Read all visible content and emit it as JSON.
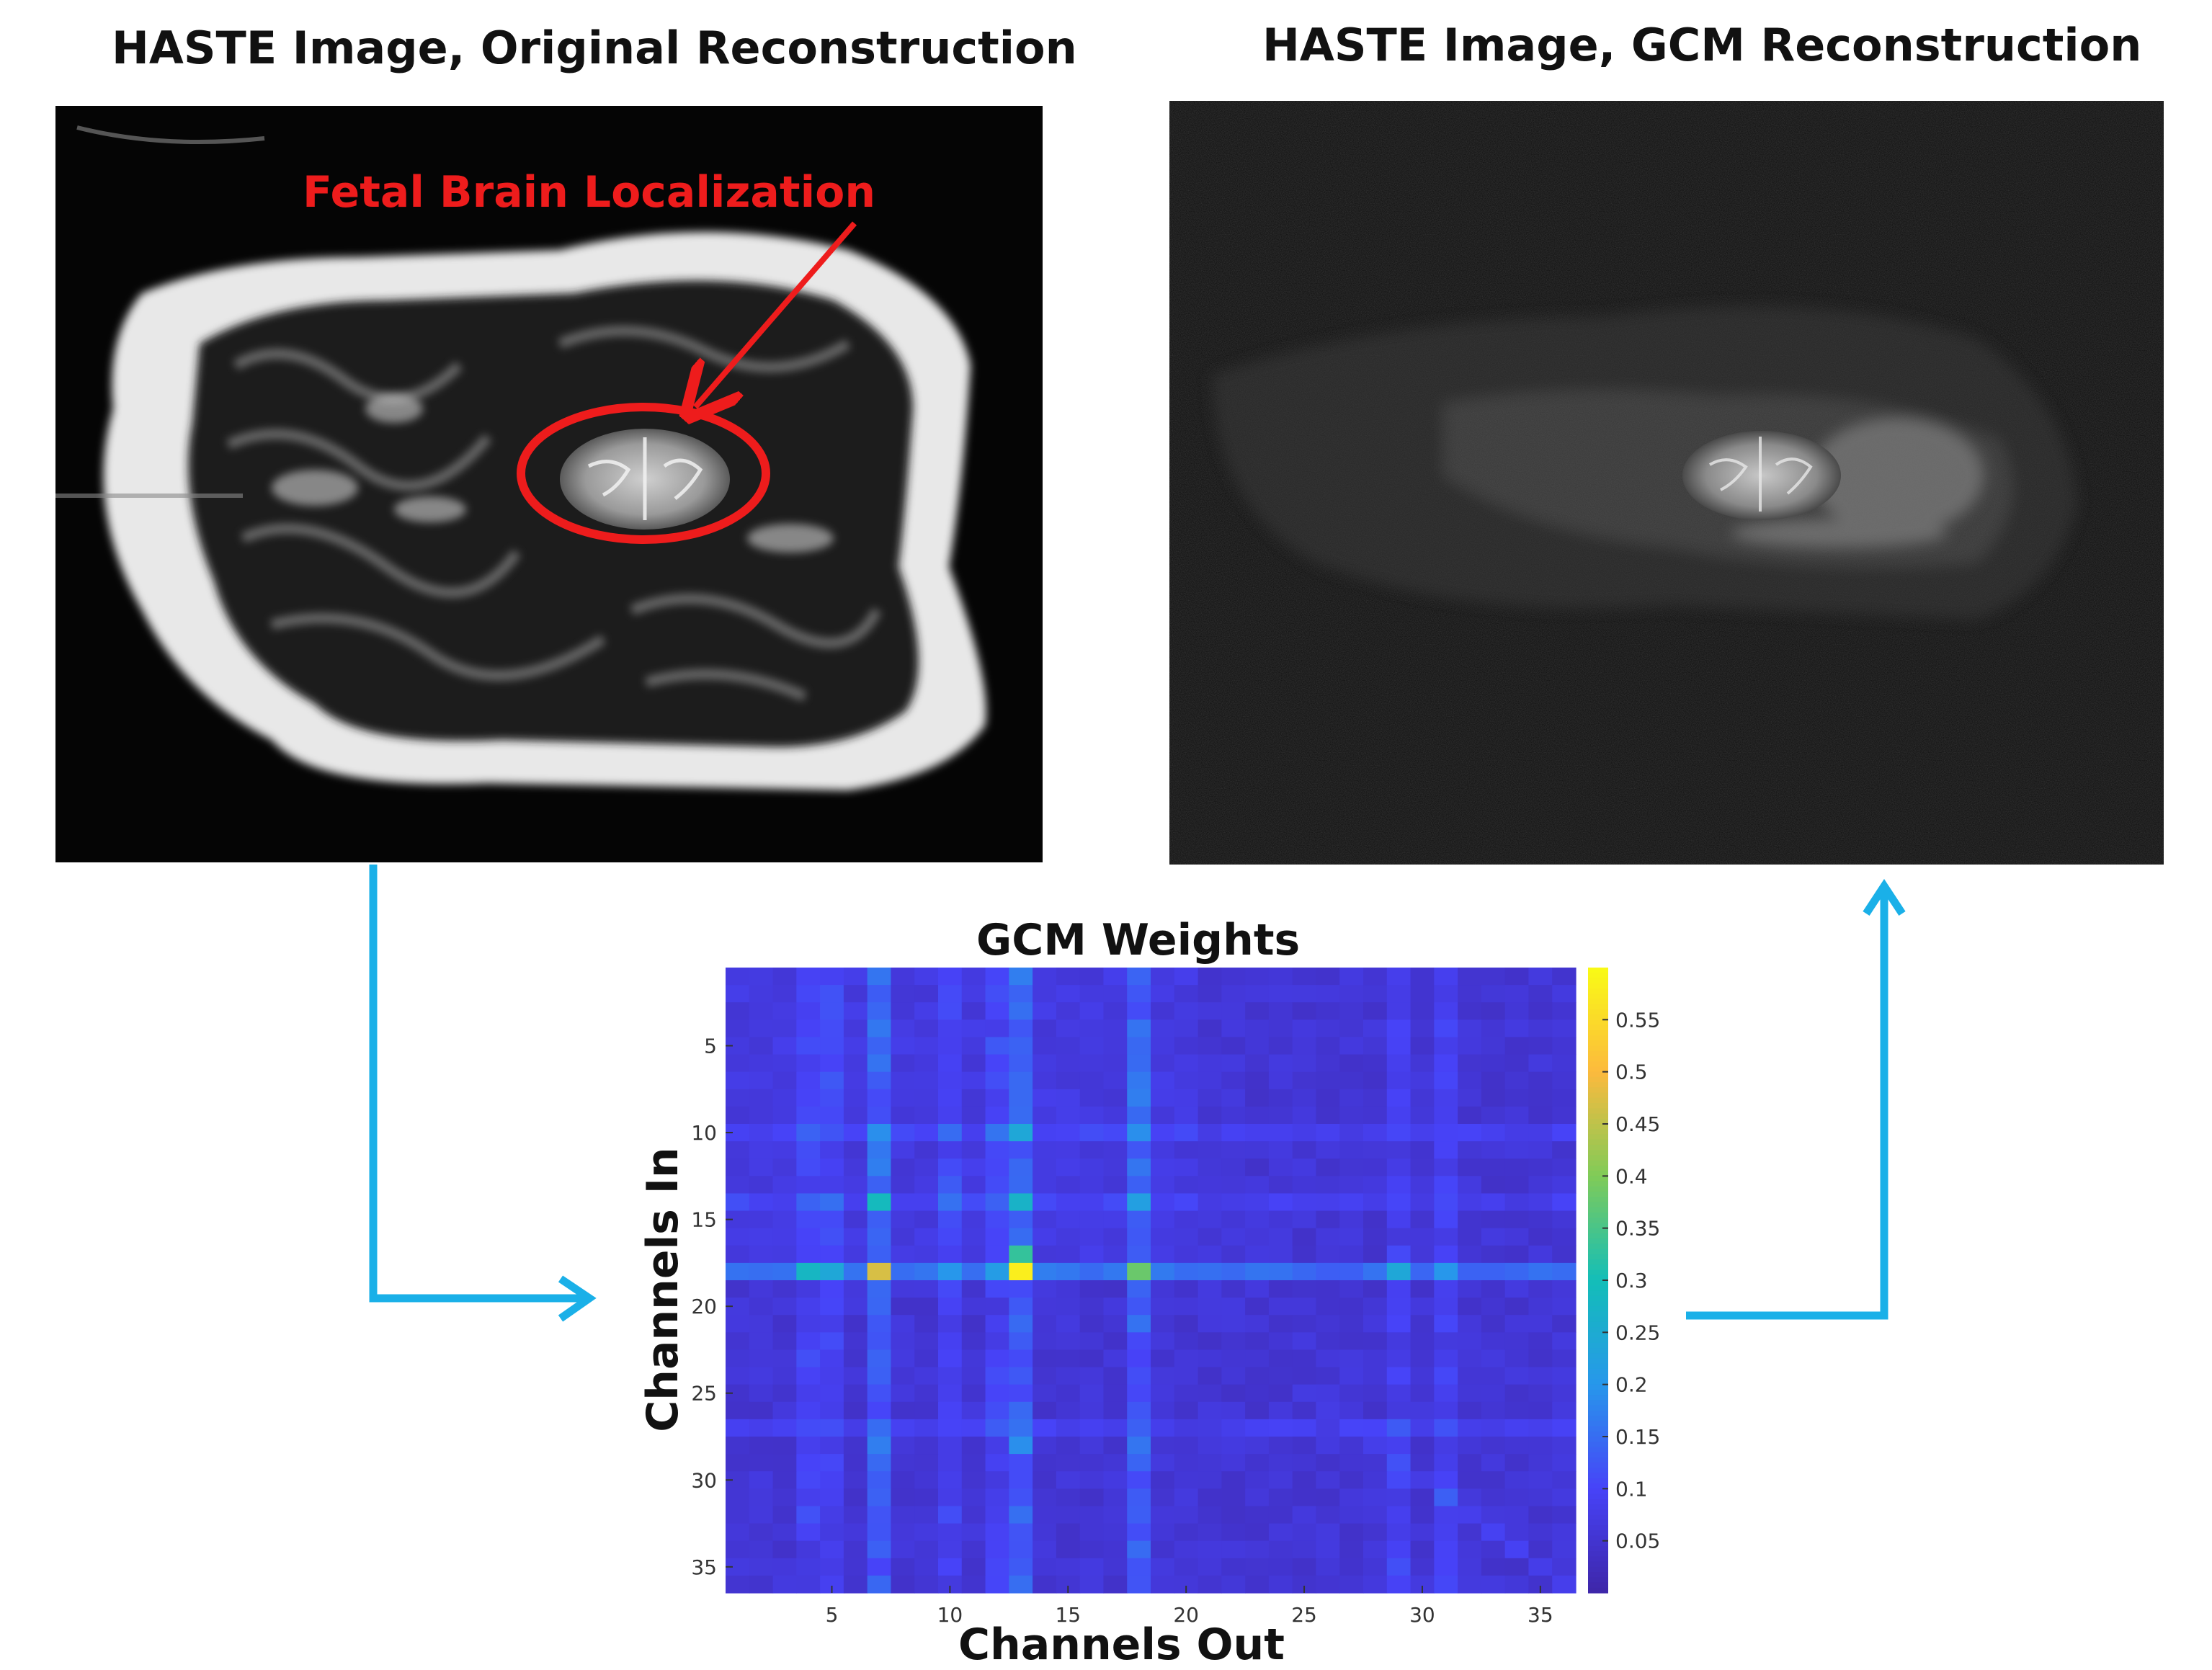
{
  "panels": {
    "left_title": "HASTE Image, Original Reconstruction",
    "right_title": "HASTE Image, GCM Reconstruction",
    "annotation": "Fetal Brain Localization"
  },
  "chart_data": {
    "type": "heatmap",
    "title": "GCM Weights",
    "xlabel": "Channels Out",
    "ylabel": "Channels In",
    "n_rows": 36,
    "n_cols": 36,
    "x_ticks": [
      5,
      10,
      15,
      20,
      25,
      30,
      35
    ],
    "y_ticks": [
      5,
      10,
      15,
      20,
      25,
      30,
      35
    ],
    "colorbar_ticks": [
      "0.05",
      "0.1",
      "0.15",
      "0.2",
      "0.25",
      "0.3",
      "0.35",
      "0.4",
      "0.45",
      "0.5",
      "0.55"
    ],
    "color_range": [
      0,
      0.6
    ],
    "colormap": [
      "#3e26a8",
      "#4743f8",
      "#2797eb",
      "#13beb8",
      "#80cb58",
      "#fcba3d",
      "#f9fb15"
    ],
    "background_level": 0.04,
    "strong_columns": [
      7,
      13,
      18
    ],
    "medium_columns": [
      4,
      5,
      10,
      12,
      29,
      31
    ],
    "strong_rows": [
      18,
      14,
      10,
      27
    ],
    "cells": [
      {
        "row": 18,
        "col": 13,
        "value": 0.58
      },
      {
        "row": 18,
        "col": 7,
        "value": 0.47
      },
      {
        "row": 18,
        "col": 18,
        "value": 0.38
      },
      {
        "row": 18,
        "col": 4,
        "value": 0.28
      },
      {
        "row": 18,
        "col": 5,
        "value": 0.24
      },
      {
        "row": 17,
        "col": 13,
        "value": 0.33
      },
      {
        "row": 18,
        "col": 29,
        "value": 0.24
      },
      {
        "row": 18,
        "col": 31,
        "value": 0.2
      },
      {
        "row": 14,
        "col": 7,
        "value": 0.29
      },
      {
        "row": 14,
        "col": 13,
        "value": 0.27
      },
      {
        "row": 14,
        "col": 18,
        "value": 0.22
      },
      {
        "row": 10,
        "col": 13,
        "value": 0.24
      },
      {
        "row": 10,
        "col": 7,
        "value": 0.19
      },
      {
        "row": 10,
        "col": 18,
        "value": 0.19
      },
      {
        "row": 28,
        "col": 13,
        "value": 0.19
      },
      {
        "row": 28,
        "col": 7,
        "value": 0.17
      },
      {
        "row": 28,
        "col": 18,
        "value": 0.16
      },
      {
        "row": 1,
        "col": 7,
        "value": 0.16
      },
      {
        "row": 1,
        "col": 13,
        "value": 0.17
      }
    ]
  }
}
